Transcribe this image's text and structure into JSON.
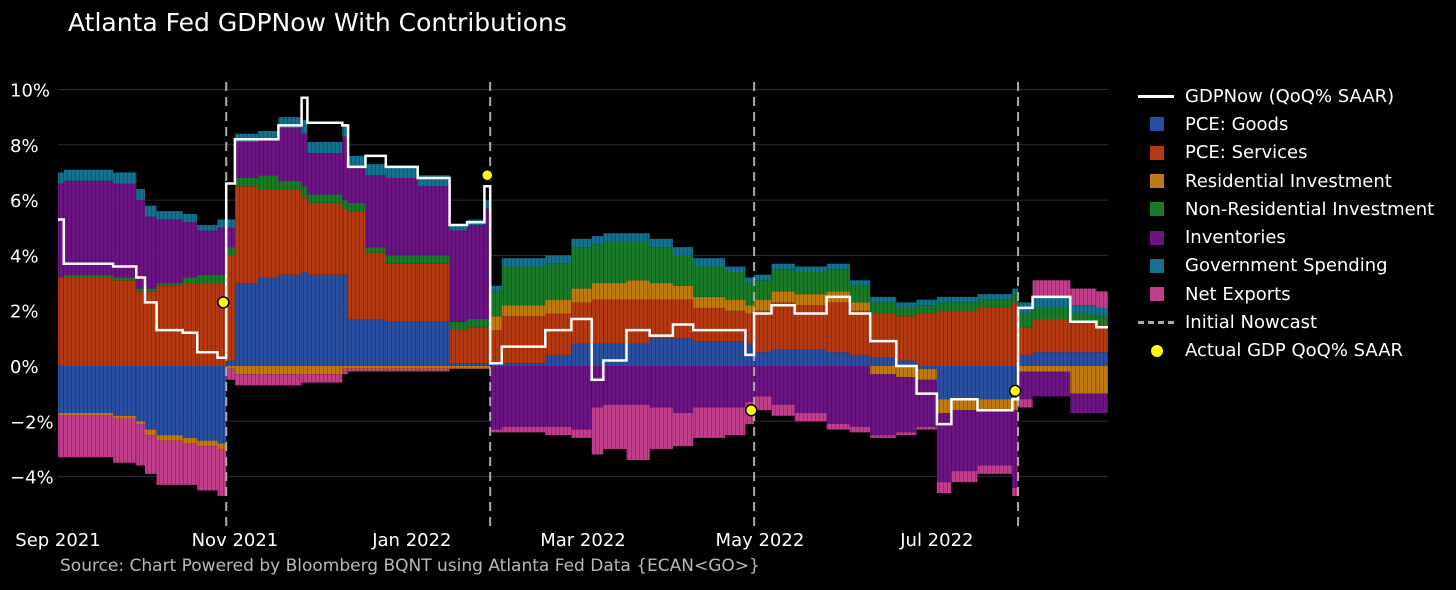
{
  "title": "Atlanta Fed GDPNow With Contributions",
  "source": "Source: Chart Powered by Bloomberg BQNT using Atlanta Fed Data   {ECAN<GO>}",
  "chart_data": {
    "type": "bar",
    "title": "Atlanta Fed GDPNow With Contributions",
    "xlabel": "",
    "ylabel": "",
    "x_range": [
      "2021-09-01",
      "2022-08-29"
    ],
    "ylim": [
      -5.6,
      11
    ],
    "grid": true,
    "legend_position": "right",
    "y_ticks": [
      {
        "value": 10,
        "label": "10%"
      },
      {
        "value": 8,
        "label": "8%"
      },
      {
        "value": 6,
        "label": "6%"
      },
      {
        "value": 4,
        "label": "4%"
      },
      {
        "value": 2,
        "label": "2%"
      },
      {
        "value": 0,
        "label": "0%"
      },
      {
        "value": -2,
        "label": "−2%"
      },
      {
        "value": -4,
        "label": "−4%"
      }
    ],
    "x_ticks": [
      {
        "date": "2021-09-01",
        "label": "Sep 2021"
      },
      {
        "date": "2021-11-01",
        "label": "Nov 2021"
      },
      {
        "date": "2022-01-01",
        "label": "Jan 2022"
      },
      {
        "date": "2022-03-01",
        "label": "Mar 2022"
      },
      {
        "date": "2022-05-01",
        "label": "May 2022"
      },
      {
        "date": "2022-07-01",
        "label": "Jul 2022"
      }
    ],
    "components": [
      {
        "name": "PCE: Goods",
        "color": "#2a4ea0"
      },
      {
        "name": "PCE: Services",
        "color": "#b33a12"
      },
      {
        "name": "Residential Investment",
        "color": "#c07a12"
      },
      {
        "name": "Non-Residential Investment",
        "color": "#1a7a2a"
      },
      {
        "name": "Inventories",
        "color": "#6a1582"
      },
      {
        "name": "Government Spending",
        "color": "#17708e"
      },
      {
        "name": "Net Exports",
        "color": "#c03e8a"
      }
    ],
    "stacks": [
      {
        "date": "2021-09-01",
        "values": [
          -1.7,
          3.2,
          -0.1,
          0.0,
          3.4,
          0.4,
          -1.5
        ],
        "gdpnow": 5.3
      },
      {
        "date": "2021-09-03",
        "values": [
          -1.7,
          3.2,
          -0.1,
          0.1,
          3.4,
          0.4,
          -1.5
        ],
        "gdpnow": 3.7
      },
      {
        "date": "2021-09-20",
        "values": [
          -1.8,
          3.1,
          -0.1,
          0.1,
          3.4,
          0.4,
          -1.6
        ],
        "gdpnow": 3.6
      },
      {
        "date": "2021-09-28",
        "values": [
          -2.0,
          2.7,
          -0.1,
          0.1,
          3.2,
          0.4,
          -1.5
        ],
        "gdpnow": 3.2
      },
      {
        "date": "2021-10-01",
        "values": [
          -2.3,
          2.7,
          -0.2,
          0.1,
          2.6,
          0.4,
          -1.4
        ],
        "gdpnow": 2.3
      },
      {
        "date": "2021-10-05",
        "values": [
          -2.5,
          2.9,
          -0.2,
          0.1,
          2.3,
          0.3,
          -1.6
        ],
        "gdpnow": 1.3
      },
      {
        "date": "2021-10-14",
        "values": [
          -2.6,
          3.0,
          -0.2,
          0.2,
          2.0,
          0.3,
          -1.5
        ],
        "gdpnow": 1.2
      },
      {
        "date": "2021-10-19",
        "values": [
          -2.7,
          3.0,
          -0.2,
          0.3,
          1.6,
          0.2,
          -1.6
        ],
        "gdpnow": 0.5
      },
      {
        "date": "2021-10-26",
        "values": [
          -2.8,
          3.0,
          -0.2,
          0.3,
          1.7,
          0.3,
          -1.7
        ],
        "gdpnow": 0.3
      },
      {
        "date": "2021-10-29",
        "values": [
          0.2,
          3.8,
          -0.1,
          0.3,
          0.7,
          0.3,
          -0.4
        ],
        "gdpnow": 6.6
      },
      {
        "date": "2021-11-01",
        "values": [
          3.0,
          3.5,
          -0.3,
          0.3,
          1.3,
          0.3,
          -0.4
        ],
        "gdpnow": 8.2
      },
      {
        "date": "2021-11-09",
        "values": [
          3.2,
          3.2,
          -0.3,
          0.5,
          1.3,
          0.3,
          -0.4
        ],
        "gdpnow": 8.2
      },
      {
        "date": "2021-11-16",
        "values": [
          3.3,
          3.1,
          -0.3,
          0.3,
          1.9,
          0.4,
          -0.4
        ],
        "gdpnow": 8.7
      },
      {
        "date": "2021-11-24",
        "values": [
          3.4,
          2.7,
          -0.3,
          0.4,
          1.9,
          0.5,
          -0.3
        ],
        "gdpnow": 9.7
      },
      {
        "date": "2021-11-26",
        "values": [
          3.3,
          2.6,
          -0.3,
          0.3,
          1.5,
          0.4,
          -0.3
        ],
        "gdpnow": 8.8
      },
      {
        "date": "2021-12-08",
        "values": [
          3.3,
          2.4,
          -0.1,
          0.3,
          2.3,
          0.4,
          -0.2
        ],
        "gdpnow": 8.7
      },
      {
        "date": "2021-12-10",
        "values": [
          1.7,
          3.9,
          -0.1,
          0.3,
          1.3,
          0.4,
          -0.1
        ],
        "gdpnow": 7.2
      },
      {
        "date": "2021-12-16",
        "values": [
          1.7,
          2.4,
          -0.1,
          0.2,
          2.6,
          0.4,
          -0.1
        ],
        "gdpnow": 7.6
      },
      {
        "date": "2021-12-23",
        "values": [
          1.6,
          2.1,
          -0.1,
          0.3,
          2.8,
          0.4,
          -0.1
        ],
        "gdpnow": 7.2
      },
      {
        "date": "2022-01-03",
        "values": [
          1.6,
          2.1,
          -0.1,
          0.3,
          2.5,
          0.4,
          -0.1
        ],
        "gdpnow": 6.8
      },
      {
        "date": "2022-01-14",
        "values": [
          0.1,
          1.2,
          -0.1,
          0.3,
          3.3,
          0.2,
          0.0
        ],
        "gdpnow": 5.1
      },
      {
        "date": "2022-01-20",
        "values": [
          0.1,
          1.3,
          -0.1,
          0.3,
          3.4,
          0.2,
          0.0
        ],
        "gdpnow": 5.2
      },
      {
        "date": "2022-01-26",
        "values": [
          0.1,
          1.3,
          -0.1,
          0.3,
          4.0,
          0.3,
          0.0
        ],
        "gdpnow": 6.5
      },
      {
        "date": "2022-01-28",
        "values": [
          0.1,
          1.2,
          0.5,
          0.9,
          -2.3,
          0.2,
          -0.1
        ],
        "gdpnow": 0.1
      },
      {
        "date": "2022-02-01",
        "values": [
          0.1,
          1.7,
          0.4,
          1.4,
          -2.2,
          0.3,
          -0.2
        ],
        "gdpnow": 0.7
      },
      {
        "date": "2022-02-16",
        "values": [
          0.4,
          1.5,
          0.5,
          1.3,
          -2.2,
          0.3,
          -0.3
        ],
        "gdpnow": 1.3
      },
      {
        "date": "2022-02-25",
        "values": [
          0.8,
          1.5,
          0.5,
          1.5,
          -2.3,
          0.3,
          -0.3
        ],
        "gdpnow": 1.7
      },
      {
        "date": "2022-03-04",
        "values": [
          0.8,
          1.6,
          0.6,
          1.4,
          -1.5,
          0.3,
          -1.7
        ],
        "gdpnow": -0.5
      },
      {
        "date": "2022-03-08",
        "values": [
          0.8,
          1.6,
          0.6,
          1.5,
          -1.4,
          0.3,
          -1.6
        ],
        "gdpnow": 0.2
      },
      {
        "date": "2022-03-16",
        "values": [
          0.8,
          1.6,
          0.7,
          1.4,
          -1.4,
          0.3,
          -2.0
        ],
        "gdpnow": 1.3
      },
      {
        "date": "2022-03-24",
        "values": [
          1.0,
          1.4,
          0.6,
          1.3,
          -1.5,
          0.3,
          -1.5
        ],
        "gdpnow": 1.1
      },
      {
        "date": "2022-04-01",
        "values": [
          1.0,
          1.4,
          0.5,
          1.1,
          -1.7,
          0.3,
          -1.2
        ],
        "gdpnow": 1.5
      },
      {
        "date": "2022-04-08",
        "values": [
          0.9,
          1.2,
          0.4,
          1.1,
          -1.5,
          0.3,
          -1.1
        ],
        "gdpnow": 1.3
      },
      {
        "date": "2022-04-19",
        "values": [
          0.9,
          1.1,
          0.4,
          1.0,
          -1.5,
          0.2,
          -1.0
        ],
        "gdpnow": 1.3
      },
      {
        "date": "2022-04-26",
        "values": [
          0.8,
          1.1,
          0.3,
          0.8,
          -1.3,
          0.2,
          -0.8
        ],
        "gdpnow": 0.4
      },
      {
        "date": "2022-04-29",
        "values": [
          0.5,
          1.5,
          0.4,
          0.7,
          -1.1,
          0.2,
          -0.5
        ],
        "gdpnow": 1.9
      },
      {
        "date": "2022-05-05",
        "values": [
          0.6,
          1.7,
          0.4,
          0.8,
          -1.4,
          0.2,
          -0.4
        ],
        "gdpnow": 2.2
      },
      {
        "date": "2022-05-13",
        "values": [
          0.6,
          1.6,
          0.4,
          0.8,
          -1.7,
          0.2,
          -0.3
        ],
        "gdpnow": 1.9
      },
      {
        "date": "2022-05-24",
        "values": [
          0.5,
          1.8,
          0.4,
          0.8,
          -2.1,
          0.2,
          -0.2
        ],
        "gdpnow": 2.5
      },
      {
        "date": "2022-06-01",
        "values": [
          0.4,
          1.6,
          0.3,
          0.6,
          -2.2,
          0.2,
          -0.2
        ],
        "gdpnow": 1.9
      },
      {
        "date": "2022-06-08",
        "values": [
          0.3,
          1.6,
          -0.3,
          0.4,
          -2.2,
          0.2,
          -0.1
        ],
        "gdpnow": 0.9
      },
      {
        "date": "2022-06-17",
        "values": [
          0.2,
          1.6,
          -0.4,
          0.3,
          -2.0,
          0.2,
          -0.1
        ],
        "gdpnow": 0.0
      },
      {
        "date": "2022-06-24",
        "values": [
          -0.1,
          1.9,
          -0.4,
          0.3,
          -1.7,
          0.2,
          -0.1
        ],
        "gdpnow": -1.0
      },
      {
        "date": "2022-07-01",
        "values": [
          -1.2,
          2.0,
          -0.5,
          0.3,
          -2.5,
          0.2,
          -0.4
        ],
        "gdpnow": -2.1
      },
      {
        "date": "2022-07-06",
        "values": [
          -1.2,
          2.0,
          -0.4,
          0.3,
          -2.2,
          0.2,
          -0.4
        ],
        "gdpnow": -1.2
      },
      {
        "date": "2022-07-15",
        "values": [
          -1.2,
          2.1,
          -0.4,
          0.3,
          -2.0,
          0.2,
          -0.3
        ],
        "gdpnow": -1.6
      },
      {
        "date": "2022-07-27",
        "values": [
          -1.1,
          2.3,
          -0.5,
          0.3,
          -2.8,
          0.2,
          -0.3
        ],
        "gdpnow": -1.2
      },
      {
        "date": "2022-07-29",
        "values": [
          0.4,
          1.0,
          -0.2,
          0.5,
          -1.0,
          0.4,
          -0.3
        ],
        "gdpnow": 2.1
      },
      {
        "date": "2022-08-03",
        "values": [
          0.5,
          1.2,
          -0.2,
          0.4,
          -0.9,
          0.4,
          0.6
        ],
        "gdpnow": 2.5
      },
      {
        "date": "2022-08-16",
        "values": [
          0.5,
          1.1,
          -1.0,
          0.3,
          -0.7,
          0.3,
          0.6
        ],
        "gdpnow": 1.6
      },
      {
        "date": "2022-08-25",
        "values": [
          0.5,
          1.0,
          -1.0,
          0.3,
          -0.7,
          0.3,
          0.6
        ],
        "gdpnow": 1.4
      }
    ],
    "initial_nowcast_dates": [
      "2021-10-29",
      "2022-01-28",
      "2022-04-29",
      "2022-07-29"
    ],
    "actual_gdp": [
      {
        "date": "2021-10-28",
        "value": 2.3
      },
      {
        "date": "2022-01-27",
        "value": 6.9
      },
      {
        "date": "2022-04-28",
        "value": -1.6
      },
      {
        "date": "2022-07-28",
        "value": -0.9
      }
    ],
    "colors": {
      "gdpnow": "#ffffff",
      "initial_nowcast": "#aaaaaa",
      "actual_gdp": "#ffff00",
      "grid": "#2a3040",
      "axis_text": "#ffffff"
    },
    "legend": [
      {
        "label": "GDPNow (QoQ% SAAR)",
        "symbol": "line",
        "color": "#ffffff"
      },
      {
        "label": "PCE: Goods",
        "symbol": "square",
        "color": "#2a4ea0"
      },
      {
        "label": "PCE: Services",
        "symbol": "square",
        "color": "#b33a12"
      },
      {
        "label": "Residential Investment",
        "symbol": "square",
        "color": "#c07a12"
      },
      {
        "label": "Non-Residential Investment",
        "symbol": "square",
        "color": "#1a7a2a"
      },
      {
        "label": "Inventories",
        "symbol": "square",
        "color": "#6a1582"
      },
      {
        "label": "Government Spending",
        "symbol": "square",
        "color": "#17708e"
      },
      {
        "label": "Net Exports",
        "symbol": "square",
        "color": "#c03e8a"
      },
      {
        "label": "Initial Nowcast",
        "symbol": "dash",
        "color": "#aaaaaa"
      },
      {
        "label": "Actual GDP QoQ% SAAR",
        "symbol": "dot",
        "color": "#ffff00"
      }
    ]
  }
}
